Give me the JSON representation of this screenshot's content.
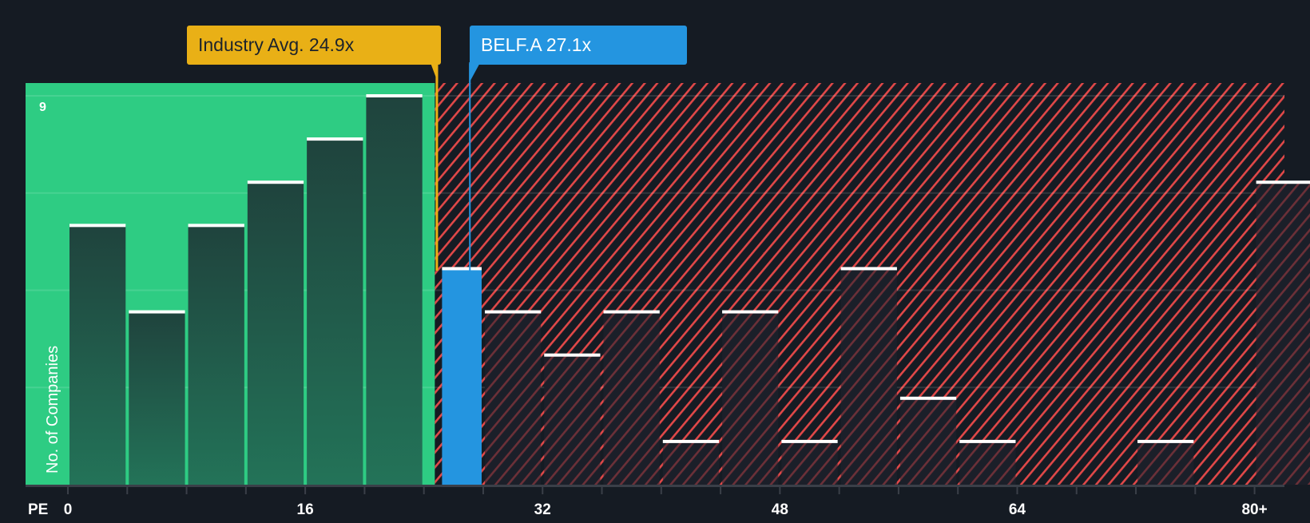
{
  "chart_data": {
    "type": "bar",
    "title": "",
    "xlabel": "PE",
    "ylabel": "No. of Companies",
    "x_tick_labels": [
      "0",
      "16",
      "32",
      "48",
      "64",
      "80+"
    ],
    "x_tick_values": [
      0,
      16,
      32,
      48,
      64,
      80
    ],
    "y_tick_labels": [
      "9"
    ],
    "ylim": [
      0,
      9
    ],
    "bin_width": 4,
    "categories": [
      "0-4",
      "4-8",
      "8-12",
      "12-16",
      "16-20",
      "20-24",
      "24-28",
      "28-32",
      "32-36",
      "36-40",
      "40-44",
      "44-48",
      "48-52",
      "52-56",
      "56-60",
      "60-64",
      "64-68",
      "68-72",
      "72-76",
      "76-80",
      "80+"
    ],
    "values": [
      6,
      4,
      6,
      7,
      8,
      9,
      5,
      4,
      3,
      4,
      1,
      4,
      1,
      5,
      2,
      1,
      0,
      0,
      1,
      0,
      7
    ],
    "highlight_bin": "24-28",
    "grid": true,
    "regions": [
      {
        "name": "below-average",
        "from": 0,
        "to": 24.9,
        "color": "#2ecc83"
      },
      {
        "name": "above-average",
        "from": 24.9,
        "to": 84,
        "color": "#e04848",
        "pattern": "diagonal-hatch"
      }
    ],
    "annotations": [
      {
        "label": "Industry Avg. 24.9x",
        "value": 24.9,
        "color": "#e9b016"
      },
      {
        "label": "BELF.A 27.1x",
        "value": 27.1,
        "color": "#2495e0"
      }
    ]
  },
  "labels": {
    "industry_avg": "Industry Avg. 24.9x",
    "company": "BELF.A 27.1x",
    "y_axis": "No. of Companies",
    "y_max": "9",
    "x_axis": "PE"
  },
  "colors": {
    "background": "#151b23",
    "green_region": "#2ecc83",
    "green_bar": "#1f473e",
    "hatch": "#e04848",
    "highlight_bar": "#2495e0",
    "industry": "#e9b016",
    "bar_cap": "#ffffff"
  }
}
